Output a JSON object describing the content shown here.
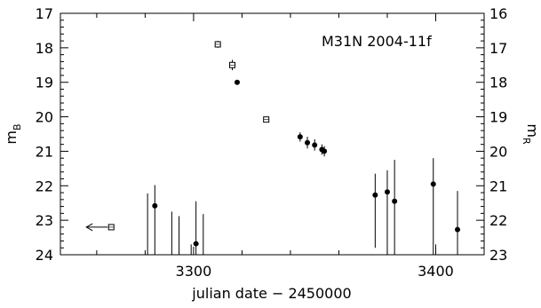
{
  "chart_data": {
    "type": "scatter",
    "title": "M31N 2004-11f",
    "xlabel": "julian date − 2450000",
    "ylabel_left": "m",
    "ylabel_left_sub": "B",
    "ylabel_right": "m",
    "ylabel_right_sub": "R",
    "xlim": [
      3245,
      3420
    ],
    "ylim_left": [
      24,
      17
    ],
    "ylim_right": [
      23,
      16
    ],
    "x_ticks": [
      3300,
      3400
    ],
    "y_ticks_left": [
      17,
      18,
      19,
      20,
      21,
      22,
      23,
      24
    ],
    "y_ticks_right": [
      16,
      17,
      18,
      19,
      20,
      21,
      22,
      23
    ],
    "series": [
      {
        "marker": "filled-circle",
        "axis": "B",
        "points": [
          {
            "x": 3284,
            "y": 22.58,
            "err": [
              21.98,
              24
            ]
          },
          {
            "x": 3301,
            "y": 23.68,
            "err": [
              22.45,
              24
            ]
          },
          {
            "x": 3318,
            "y": 19.0
          },
          {
            "x": 3344,
            "y": 20.58,
            "err": [
              20.45,
              20.72
            ]
          },
          {
            "x": 3347,
            "y": 20.75,
            "err": [
              20.58,
              20.92
            ]
          },
          {
            "x": 3350,
            "y": 20.82,
            "err": [
              20.65,
              20.98
            ]
          },
          {
            "x": 3353,
            "y": 20.95,
            "err": [
              20.8,
              21.1
            ]
          },
          {
            "x": 3354,
            "y": 21.0,
            "err": [
              20.85,
              21.15
            ]
          },
          {
            "x": 3375,
            "y": 22.27,
            "err": [
              21.65,
              23.8
            ]
          },
          {
            "x": 3380,
            "y": 22.18,
            "err": [
              21.55,
              24
            ]
          },
          {
            "x": 3383,
            "y": 22.45,
            "err": [
              21.25,
              24
            ]
          },
          {
            "x": 3399,
            "y": 21.95,
            "err": [
              21.2,
              24
            ]
          },
          {
            "x": 3409,
            "y": 23.27,
            "err": [
              22.15,
              24
            ]
          }
        ]
      },
      {
        "marker": "open-square",
        "axis": "R",
        "points": [
          {
            "x": 3266,
            "y": 22.2,
            "upper_limit": true
          },
          {
            "x": 3310,
            "y": 16.9,
            "err": [
              16.8,
              17.0
            ]
          },
          {
            "x": 3316,
            "y": 17.5,
            "err": [
              17.35,
              17.65
            ]
          },
          {
            "x": 3330,
            "y": 19.08,
            "err": [
              19.0,
              19.16
            ]
          }
        ]
      }
    ],
    "extra_error_bars_B": [
      {
        "x": 3281,
        "err": [
          22.22,
          24
        ]
      },
      {
        "x": 3291,
        "err": [
          22.75,
          24
        ]
      },
      {
        "x": 3294,
        "err": [
          22.88,
          24
        ]
      },
      {
        "x": 3299,
        "err": [
          23.7,
          24
        ]
      },
      {
        "x": 3304,
        "err": [
          22.82,
          24
        ]
      },
      {
        "x": 3400,
        "err": [
          23.7,
          24
        ]
      }
    ]
  }
}
